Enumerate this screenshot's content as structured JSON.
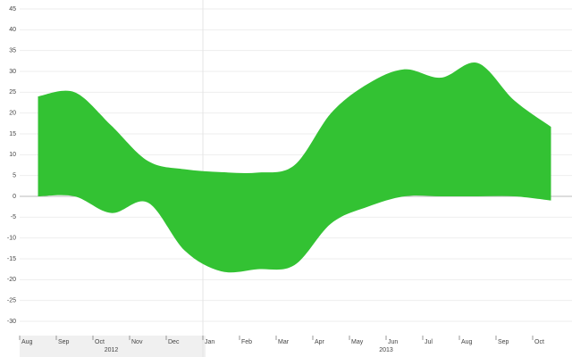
{
  "chart_data": {
    "type": "range-area",
    "categories": [
      "Aug",
      "Sep",
      "Oct",
      "Nov",
      "Dec",
      "Jan",
      "Feb",
      "Mar",
      "Apr",
      "May",
      "Jun",
      "Jul",
      "Aug",
      "Sep",
      "Oct"
    ],
    "x_groups": [
      {
        "label": "2012",
        "count": 5
      },
      {
        "label": "2013",
        "count": 10
      }
    ],
    "high": [
      24,
      25,
      17,
      8.5,
      6.5,
      5.8,
      5.7,
      7.5,
      20,
      27,
      30.5,
      28.5,
      32,
      23,
      16.7
    ],
    "low": [
      0,
      0,
      -4,
      -1.5,
      -13,
      -18,
      -17.5,
      -16.5,
      -6.5,
      -2.5,
      0,
      0,
      0,
      0,
      -1
    ],
    "color": "#33c233",
    "ylim": [
      -33,
      46.5
    ],
    "yticks": [
      -30,
      -25,
      -20,
      -15,
      -10,
      -5,
      0,
      5,
      10,
      15,
      20,
      25,
      30,
      35,
      40,
      45
    ],
    "grid": true
  }
}
